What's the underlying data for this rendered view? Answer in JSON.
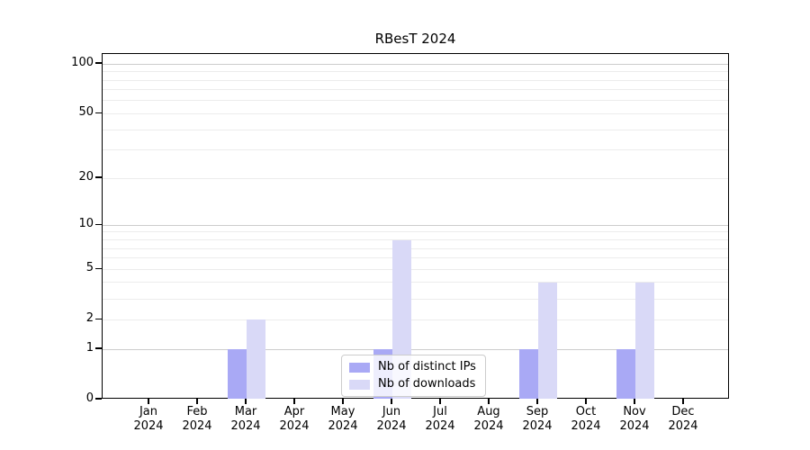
{
  "chart_data": {
    "type": "bar",
    "title": "RBesT 2024",
    "categories": [
      "Jan 2024",
      "Feb 2024",
      "Mar 2024",
      "Apr 2024",
      "May 2024",
      "Jun 2024",
      "Jul 2024",
      "Aug 2024",
      "Sep 2024",
      "Oct 2024",
      "Nov 2024",
      "Dec 2024"
    ],
    "series": [
      {
        "name": "Nb of distinct IPs",
        "color": "#a9a9f5",
        "values": [
          0,
          0,
          1,
          0,
          0,
          1,
          0,
          0,
          1,
          0,
          1,
          0
        ]
      },
      {
        "name": "Nb of downloads",
        "color": "#d9d9f7",
        "values": [
          0,
          0,
          2,
          0,
          0,
          8,
          0,
          0,
          4,
          0,
          4,
          0
        ]
      }
    ],
    "yscale": "log1p",
    "ylim": [
      0,
      115
    ],
    "y_tick_labels": [
      0,
      1,
      2,
      5,
      10,
      20,
      50,
      100
    ],
    "y_major_gridlines": [
      1,
      10,
      100
    ],
    "y_minor_gridlines": [
      2,
      3,
      4,
      5,
      6,
      7,
      8,
      9,
      20,
      30,
      40,
      50,
      60,
      70,
      80,
      90
    ],
    "xlabel": "",
    "ylabel": "",
    "grid": true,
    "legend_position": "lower center",
    "colors": {
      "major_grid": "#cccccc",
      "minor_grid": "#ececec",
      "spine": "#000000",
      "legend_border": "#cccccc"
    }
  }
}
